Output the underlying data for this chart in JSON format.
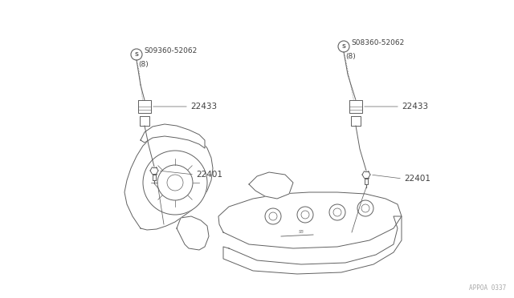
{
  "bg_color": "#ffffff",
  "line_color": "#606060",
  "text_color": "#404040",
  "fig_width": 6.4,
  "fig_height": 3.72,
  "dpi": 100,
  "watermark": "APPOA 0337",
  "labels": {
    "left_bolt": "S09360-52062",
    "left_bolt_sub": "(8)",
    "right_bolt": "S08360-52062",
    "right_bolt_sub": "(8)",
    "left_coil": "22433",
    "right_coil": "22433",
    "left_plug": "22401",
    "right_plug": "22401"
  }
}
